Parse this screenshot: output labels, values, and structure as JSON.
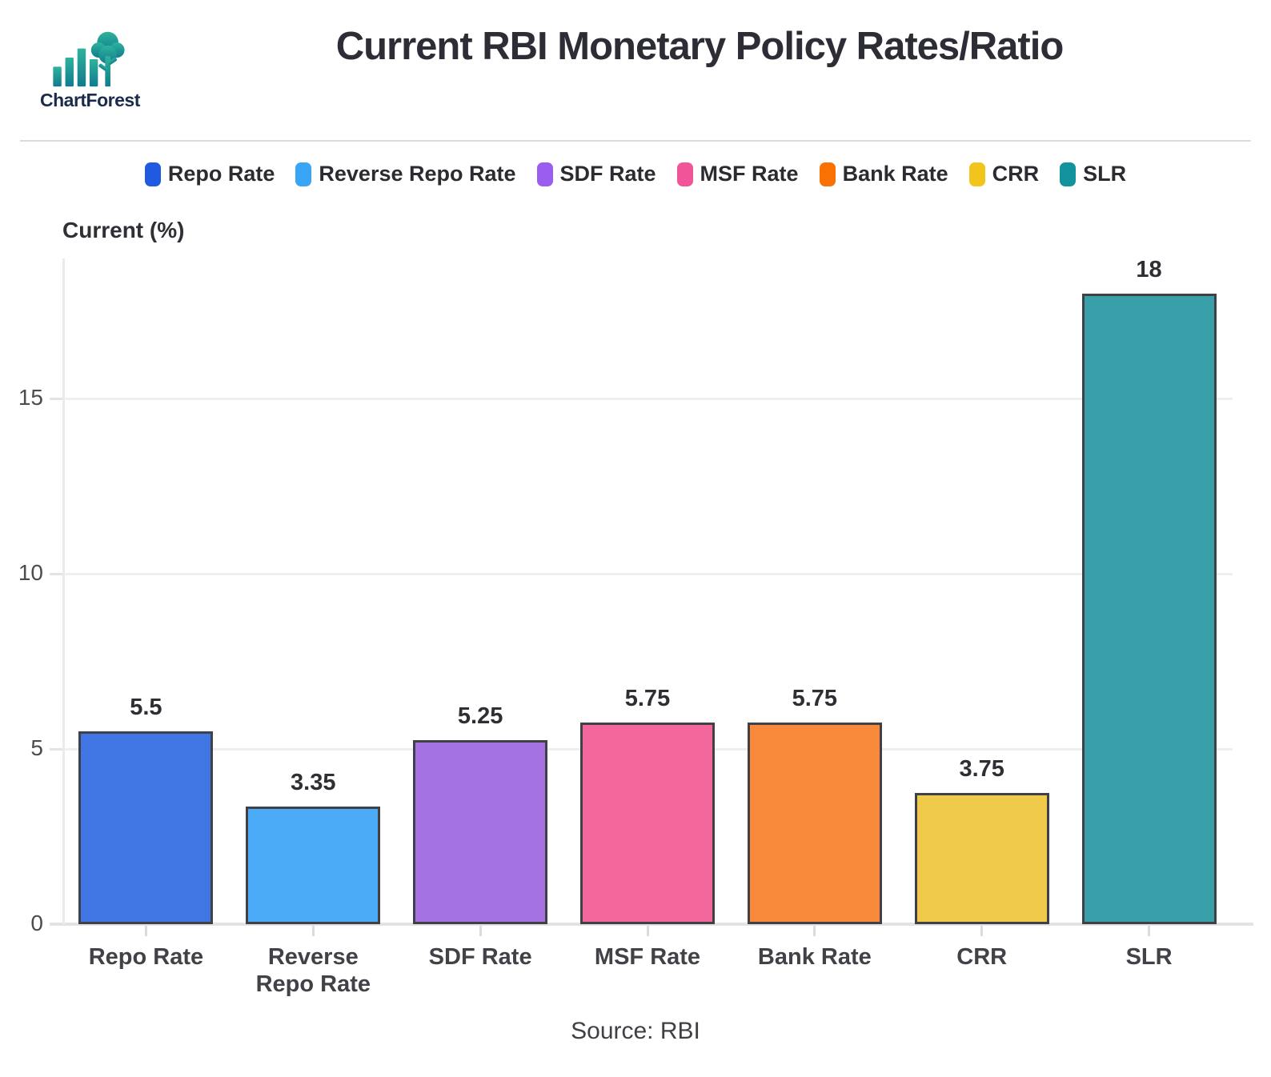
{
  "brand": {
    "name": "ChartForest",
    "logo_gradient_top": "#2eb39c",
    "logo_gradient_bottom": "#117b8e",
    "text_color": "#1b2b4b"
  },
  "header": {
    "title": "Current RBI Monetary Policy Rates/Ratio"
  },
  "chart_data": {
    "type": "bar",
    "title": "Current RBI Monetary Policy Rates/Ratio",
    "xlabel": "",
    "ylabel": "Current (%)",
    "ylim": [
      0,
      19
    ],
    "yticks": [
      0,
      5,
      10,
      15
    ],
    "grid": true,
    "legend_position": "top",
    "bar_border_color": "#3f4147",
    "categories": [
      "Repo Rate",
      "Reverse Repo Rate",
      "SDF Rate",
      "MSF Rate",
      "Bank Rate",
      "CRR",
      "SLR"
    ],
    "values": [
      5.5,
      3.35,
      5.25,
      5.75,
      5.75,
      3.75,
      18
    ],
    "value_labels": [
      "5.5",
      "3.35",
      "5.25",
      "5.75",
      "5.75",
      "3.75",
      "18"
    ],
    "series": [
      {
        "name": "Repo Rate",
        "value": 5.5,
        "label": "5.5",
        "bar_color": "#4076e3",
        "legend_color": "#1f5ae0"
      },
      {
        "name": "Reverse Repo Rate",
        "value": 3.35,
        "label": "3.35",
        "bar_color": "#4babf7",
        "legend_color": "#38a5f7"
      },
      {
        "name": "SDF Rate",
        "value": 5.25,
        "label": "5.25",
        "bar_color": "#a472e2",
        "legend_color": "#9b5df0"
      },
      {
        "name": "MSF Rate",
        "value": 5.75,
        "label": "5.75",
        "bar_color": "#f4679c",
        "legend_color": "#f2549a"
      },
      {
        "name": "Bank Rate",
        "value": 5.75,
        "label": "5.75",
        "bar_color": "#f98a3c",
        "legend_color": "#f97102"
      },
      {
        "name": "CRR",
        "value": 3.75,
        "label": "3.75",
        "bar_color": "#f0ca4a",
        "legend_color": "#f2c51d"
      },
      {
        "name": "SLR",
        "value": 18,
        "label": "18",
        "bar_color": "#399fa8",
        "legend_color": "#12939e"
      }
    ]
  },
  "footer": {
    "source": "Source: RBI"
  }
}
